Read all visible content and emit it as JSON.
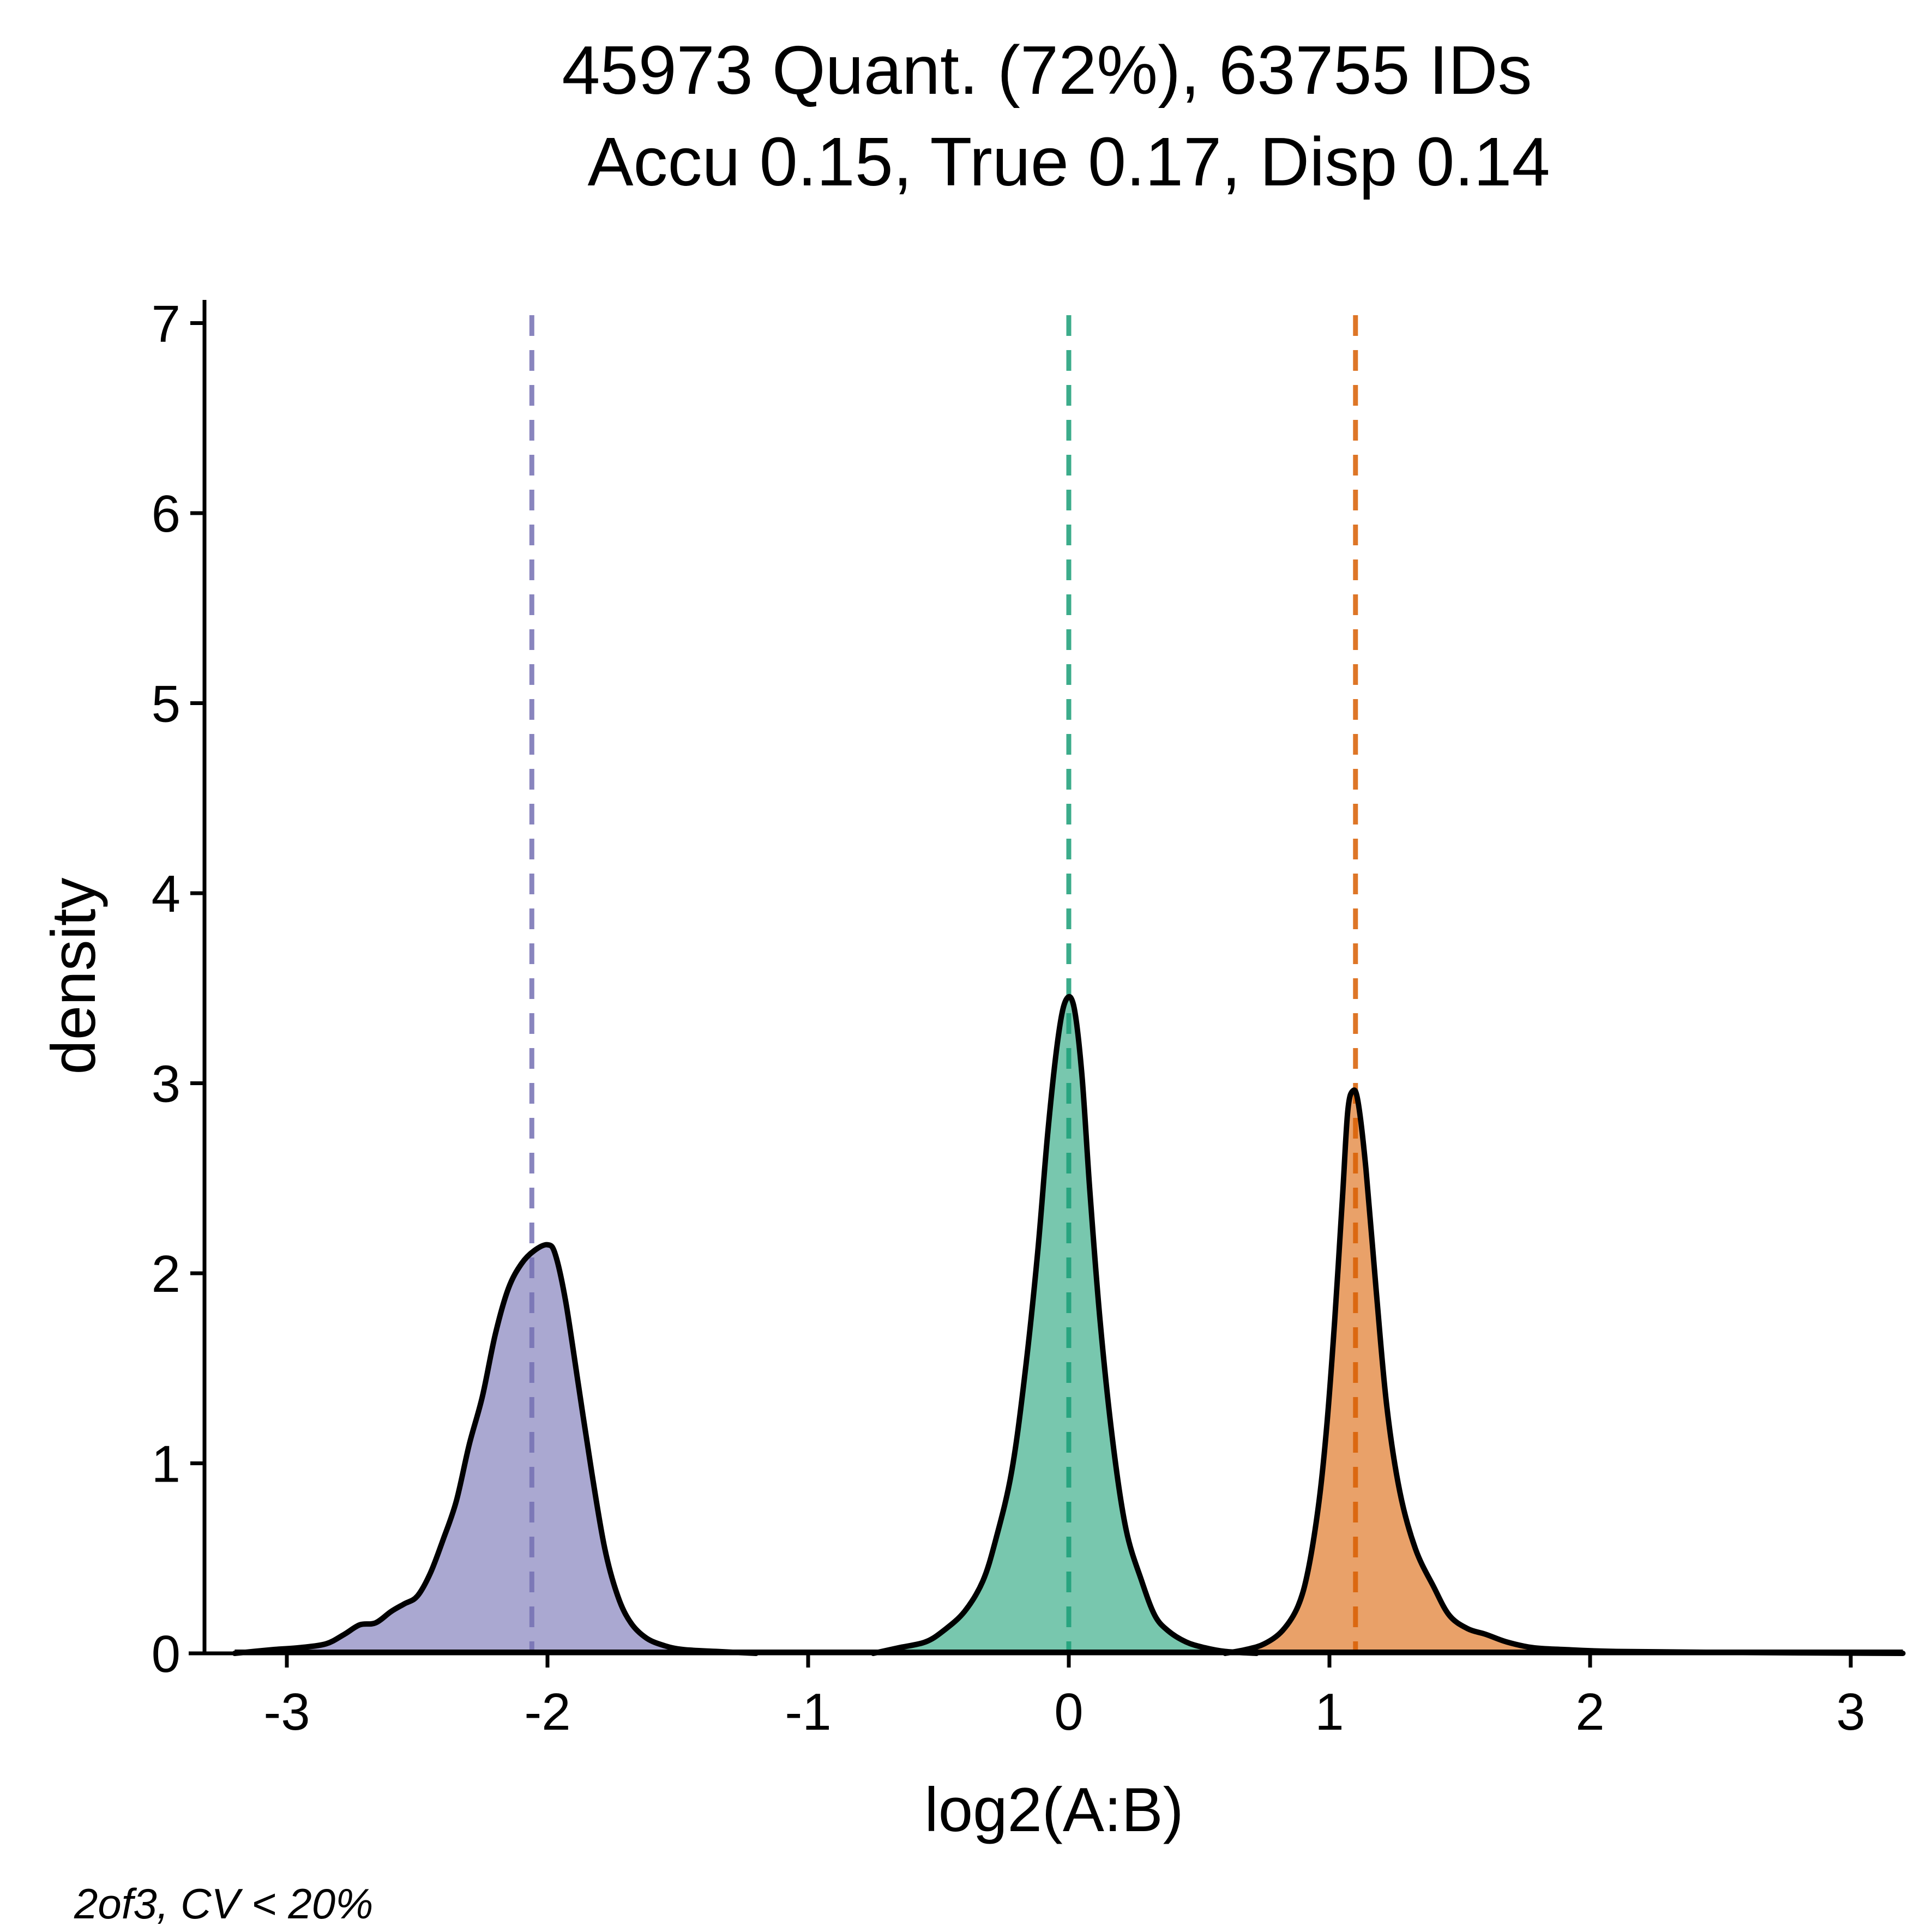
{
  "chart_data": {
    "type": "area",
    "title_line1": "45973 Quant. (72%), 63755 IDs",
    "title_line2": "Accu 0.15, True 0.17, Disp 0.14",
    "xlabel": "log2(A:B)",
    "ylabel": "density",
    "caption": "2of3, CV < 20%",
    "xlim": [
      -3.4,
      3.2
    ],
    "ylim": [
      0,
      7.2
    ],
    "x_ticks": [
      -3,
      -2,
      -1,
      0,
      1,
      2,
      3
    ],
    "x_tick_labels": [
      "-3",
      "-2",
      "-1",
      "0",
      "1",
      "2",
      "3"
    ],
    "y_ticks": [
      0,
      1,
      2,
      3,
      4,
      5,
      6,
      7
    ],
    "y_tick_labels": [
      "0",
      "1",
      "2",
      "3",
      "4",
      "5",
      "6",
      "7"
    ],
    "grid": false,
    "series": [
      {
        "color": "#7570b3",
        "fill": "#aaa8d1",
        "expected_log2": -2.06,
        "points": [
          [
            -3.2,
            0.0
          ],
          [
            -3.05,
            0.02
          ],
          [
            -2.95,
            0.03
          ],
          [
            -2.85,
            0.05
          ],
          [
            -2.78,
            0.1
          ],
          [
            -2.72,
            0.15
          ],
          [
            -2.66,
            0.16
          ],
          [
            -2.6,
            0.22
          ],
          [
            -2.55,
            0.26
          ],
          [
            -2.5,
            0.3
          ],
          [
            -2.45,
            0.42
          ],
          [
            -2.4,
            0.6
          ],
          [
            -2.35,
            0.8
          ],
          [
            -2.3,
            1.1
          ],
          [
            -2.25,
            1.35
          ],
          [
            -2.2,
            1.68
          ],
          [
            -2.15,
            1.92
          ],
          [
            -2.1,
            2.05
          ],
          [
            -2.05,
            2.12
          ],
          [
            -2.0,
            2.15
          ],
          [
            -1.97,
            2.1
          ],
          [
            -1.93,
            1.85
          ],
          [
            -1.88,
            1.4
          ],
          [
            -1.83,
            0.95
          ],
          [
            -1.78,
            0.55
          ],
          [
            -1.73,
            0.3
          ],
          [
            -1.68,
            0.16
          ],
          [
            -1.62,
            0.08
          ],
          [
            -1.55,
            0.04
          ],
          [
            -1.48,
            0.02
          ],
          [
            -1.35,
            0.01
          ],
          [
            -1.2,
            0.0
          ]
        ]
      },
      {
        "color": "#1b9e77",
        "fill": "#78c7ae",
        "expected_log2": 0.0,
        "points": [
          [
            -0.75,
            0.0
          ],
          [
            -0.65,
            0.03
          ],
          [
            -0.55,
            0.06
          ],
          [
            -0.48,
            0.12
          ],
          [
            -0.4,
            0.22
          ],
          [
            -0.33,
            0.38
          ],
          [
            -0.28,
            0.6
          ],
          [
            -0.22,
            0.95
          ],
          [
            -0.17,
            1.45
          ],
          [
            -0.12,
            2.1
          ],
          [
            -0.08,
            2.75
          ],
          [
            -0.04,
            3.25
          ],
          [
            -0.01,
            3.44
          ],
          [
            0.02,
            3.4
          ],
          [
            0.05,
            3.05
          ],
          [
            0.08,
            2.45
          ],
          [
            0.12,
            1.75
          ],
          [
            0.17,
            1.1
          ],
          [
            0.22,
            0.65
          ],
          [
            0.28,
            0.38
          ],
          [
            0.33,
            0.2
          ],
          [
            0.38,
            0.12
          ],
          [
            0.45,
            0.06
          ],
          [
            0.52,
            0.03
          ],
          [
            0.6,
            0.01
          ],
          [
            0.72,
            0.0
          ]
        ]
      },
      {
        "color": "#d95f02",
        "fill": "#e9a169",
        "expected_log2": 1.1,
        "points": [
          [
            0.6,
            0.0
          ],
          [
            0.68,
            0.02
          ],
          [
            0.75,
            0.05
          ],
          [
            0.82,
            0.12
          ],
          [
            0.88,
            0.25
          ],
          [
            0.92,
            0.45
          ],
          [
            0.96,
            0.8
          ],
          [
            0.99,
            1.2
          ],
          [
            1.02,
            1.75
          ],
          [
            1.05,
            2.4
          ],
          [
            1.07,
            2.85
          ],
          [
            1.09,
            2.96
          ],
          [
            1.11,
            2.9
          ],
          [
            1.14,
            2.55
          ],
          [
            1.18,
            1.9
          ],
          [
            1.22,
            1.3
          ],
          [
            1.27,
            0.85
          ],
          [
            1.33,
            0.55
          ],
          [
            1.4,
            0.35
          ],
          [
            1.46,
            0.2
          ],
          [
            1.53,
            0.13
          ],
          [
            1.6,
            0.1
          ],
          [
            1.68,
            0.06
          ],
          [
            1.78,
            0.03
          ],
          [
            1.9,
            0.02
          ],
          [
            2.1,
            0.01
          ],
          [
            2.5,
            0.005
          ],
          [
            3.2,
            0.0
          ]
        ]
      }
    ]
  }
}
